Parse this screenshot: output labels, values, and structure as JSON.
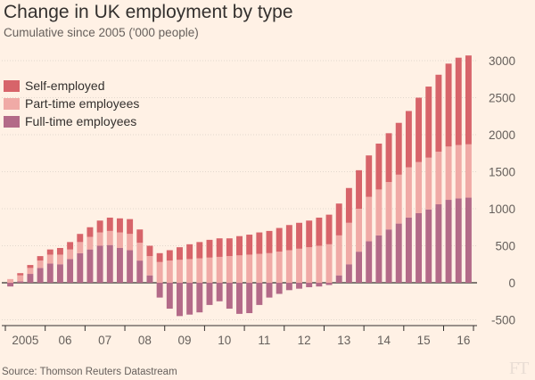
{
  "title": "Change in UK employment by type",
  "subtitle": "Cumulative since 2005 ('000 people)",
  "source": "Source: Thomson Reuters Datastream",
  "logo": "FT",
  "colors": {
    "background": "#fff1e5",
    "self_employed": "#d7646a",
    "part_time": "#f0aaa6",
    "full_time": "#b36a88",
    "grid": "#e2d7cd",
    "axis": "#33302e"
  },
  "chart_data": {
    "type": "bar",
    "stacked": true,
    "grid": true,
    "legend_position": "top-left",
    "y_axis_side": "right",
    "ylim": [
      -600,
      3150
    ],
    "yticks": [
      -500,
      0,
      500,
      1000,
      1500,
      2000,
      2500,
      3000
    ],
    "x_tick_labels": [
      "2005",
      "06",
      "07",
      "08",
      "09",
      "10",
      "11",
      "12",
      "13",
      "14",
      "15",
      "16"
    ],
    "x": [
      "2005 Q1",
      "2005 Q2",
      "2005 Q3",
      "2005 Q4",
      "2006 Q1",
      "2006 Q2",
      "2006 Q3",
      "2006 Q4",
      "2007 Q1",
      "2007 Q2",
      "2007 Q3",
      "2007 Q4",
      "2008 Q1",
      "2008 Q2",
      "2008 Q3",
      "2008 Q4",
      "2009 Q1",
      "2009 Q2",
      "2009 Q3",
      "2009 Q4",
      "2010 Q1",
      "2010 Q2",
      "2010 Q3",
      "2010 Q4",
      "2011 Q1",
      "2011 Q2",
      "2011 Q3",
      "2011 Q4",
      "2012 Q1",
      "2012 Q2",
      "2012 Q3",
      "2012 Q4",
      "2013 Q1",
      "2013 Q2",
      "2013 Q3",
      "2013 Q4",
      "2014 Q1",
      "2014 Q2",
      "2014 Q3",
      "2014 Q4",
      "2015 Q1",
      "2015 Q2",
      "2015 Q3",
      "2015 Q4",
      "2016 Q1",
      "2016 Q2",
      "2016 Q3"
    ],
    "series": [
      {
        "name": "Full-time employees",
        "values": [
          -50,
          20,
          120,
          200,
          260,
          250,
          320,
          400,
          450,
          500,
          510,
          470,
          440,
          300,
          100,
          -200,
          -350,
          -450,
          -430,
          -400,
          -300,
          -250,
          -350,
          -420,
          -410,
          -300,
          -200,
          -150,
          -100,
          -80,
          -60,
          -50,
          -30,
          100,
          250,
          420,
          560,
          640,
          720,
          800,
          880,
          940,
          990,
          1060,
          1120,
          1140,
          1150
        ]
      },
      {
        "name": "Part-time employees",
        "values": [
          50,
          80,
          80,
          100,
          120,
          130,
          130,
          150,
          170,
          180,
          190,
          210,
          220,
          240,
          260,
          280,
          300,
          310,
          320,
          330,
          340,
          350,
          360,
          370,
          380,
          390,
          400,
          420,
          440,
          460,
          480,
          500,
          520,
          540,
          560,
          580,
          600,
          620,
          640,
          660,
          680,
          690,
          700,
          710,
          720,
          720,
          720
        ]
      },
      {
        "name": "Self-employed",
        "values": [
          0,
          30,
          40,
          60,
          70,
          90,
          100,
          110,
          130,
          160,
          180,
          190,
          200,
          180,
          140,
          120,
          140,
          170,
          200,
          220,
          240,
          250,
          240,
          260,
          270,
          290,
          300,
          320,
          340,
          350,
          360,
          380,
          400,
          430,
          470,
          520,
          560,
          620,
          660,
          700,
          760,
          870,
          960,
          1040,
          1120,
          1180,
          1200
        ]
      }
    ]
  }
}
